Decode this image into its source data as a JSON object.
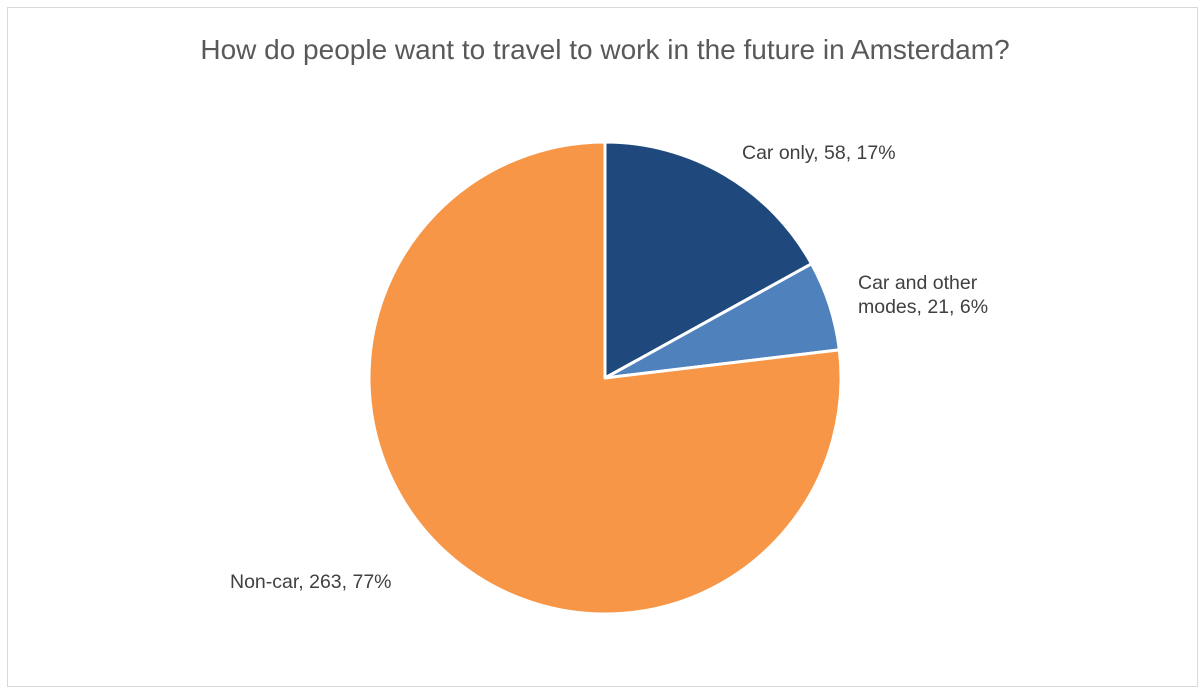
{
  "chart_data": {
    "type": "pie",
    "title": "How do people want to travel to work in the future in Amsterdam?",
    "slices": [
      {
        "label": "Car only",
        "value": 58,
        "percent": 17,
        "color": "#1f497d"
      },
      {
        "label": "Car and other modes",
        "value": 21,
        "percent": 6,
        "color": "#4f81bd"
      },
      {
        "label": "Non-car",
        "value": 263,
        "percent": 77,
        "color": "#f79646"
      }
    ],
    "data_labels": [
      {
        "lines": [
          "Car only, 58, 17%"
        ]
      },
      {
        "lines": [
          "Car and other",
          "modes, 21, 6%"
        ]
      },
      {
        "lines": [
          "Non-car, 263, 77%"
        ]
      }
    ],
    "legend": "none",
    "start_angle": "12 o'clock, clockwise"
  }
}
